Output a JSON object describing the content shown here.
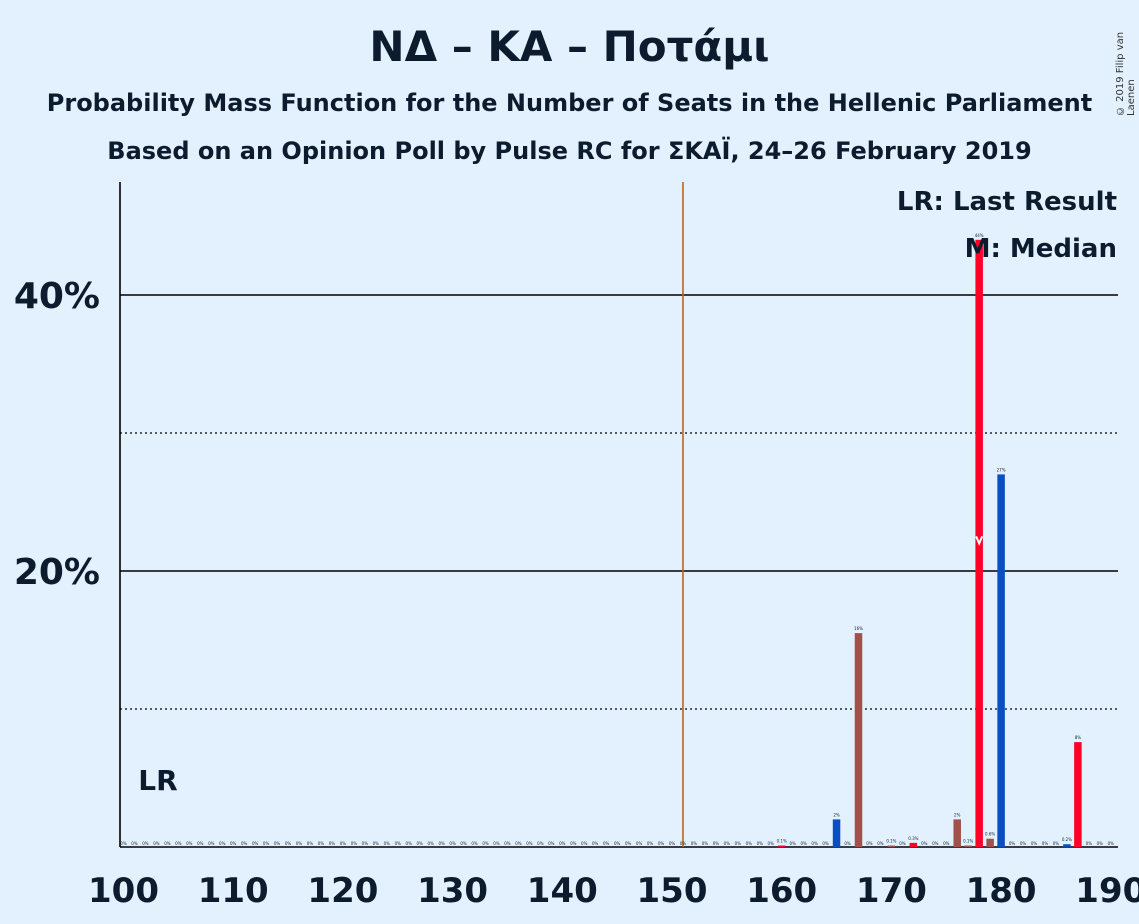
{
  "title": "ΝΔ – ΚΑ – Ποτάμι",
  "subtitle_1": "Probability Mass Function for the Number of Seats in the Hellenic Parliament",
  "subtitle_2": "Based on an Opinion Poll by Pulse RC for ΣΚΑΪ, 24–26 February 2019",
  "copyright": "© 2019 Filip van Laenen",
  "colors": {
    "background": "#e3f1fe",
    "red": "#ff0026",
    "blue": "#0a4fbf",
    "brown": "#a0524a",
    "majority_line": "#b8651a"
  },
  "chart_data": {
    "type": "bar",
    "xlabel": "",
    "ylabel": "",
    "xlim": [
      100,
      190
    ],
    "ylim": [
      0,
      48
    ],
    "x_ticks": [
      100,
      110,
      120,
      130,
      140,
      150,
      160,
      170,
      180,
      190
    ],
    "y_ticks_labeled": [
      {
        "value": 20,
        "label": "20%"
      },
      {
        "value": 40,
        "label": "40%"
      }
    ],
    "y_gridlines_dotted": [
      10,
      30
    ],
    "majority_line": 151,
    "last_result_label": "LR",
    "median_seat": 178,
    "median_marker": "M",
    "legend": [
      "LR: Last Result",
      "M: Median"
    ],
    "legend_position": "top-right",
    "zero_label": "0%",
    "bars": [
      {
        "seat": 160,
        "value": 0.1,
        "label": "0.1%",
        "color": "red"
      },
      {
        "seat": 165,
        "value": 2,
        "label": "2%",
        "color": "blue"
      },
      {
        "seat": 167,
        "value": 15.5,
        "label": "16%",
        "color": "brown"
      },
      {
        "seat": 170,
        "value": 0.1,
        "label": "0.1%",
        "color": "brown"
      },
      {
        "seat": 172,
        "value": 0.3,
        "label": "0.3%",
        "color": "red"
      },
      {
        "seat": 176,
        "value": 2,
        "label": "2%",
        "color": "brown"
      },
      {
        "seat": 177,
        "value": 0.1,
        "label": "0.1%",
        "color": "brown"
      },
      {
        "seat": 178,
        "value": 44,
        "label": "44%",
        "color": "red"
      },
      {
        "seat": 179,
        "value": 0.6,
        "label": "0.6%",
        "color": "brown"
      },
      {
        "seat": 180,
        "value": 27,
        "label": "27%",
        "color": "blue"
      },
      {
        "seat": 186,
        "value": 0.2,
        "label": "0.2%",
        "color": "blue"
      },
      {
        "seat": 187,
        "value": 7.6,
        "label": "8%",
        "color": "red"
      }
    ]
  }
}
